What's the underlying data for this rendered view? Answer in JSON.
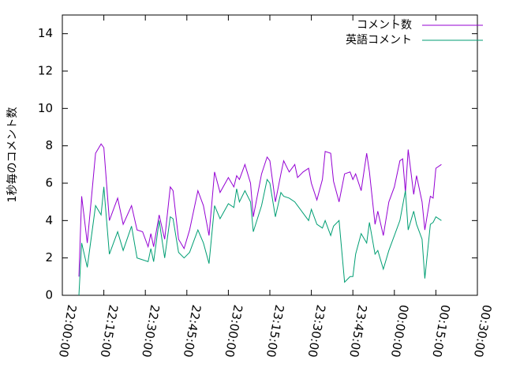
{
  "chart_data": {
    "type": "line",
    "ylabel": "1秒毎のコメント数",
    "x": [
      "22:06:00",
      "22:07:00",
      "22:09:00",
      "22:12:00",
      "22:14:00",
      "22:15:00",
      "22:17:00",
      "22:20:00",
      "22:22:00",
      "22:25:00",
      "22:27:00",
      "22:29:00",
      "22:31:00",
      "22:32:00",
      "22:33:00",
      "22:35:00",
      "22:37:00",
      "22:39:00",
      "22:40:00",
      "22:42:00",
      "22:44:00",
      "22:46:00",
      "22:49:00",
      "22:51:00",
      "22:53:00",
      "22:55:00",
      "22:57:00",
      "23:00:00",
      "23:02:00",
      "23:03:00",
      "23:04:00",
      "23:06:00",
      "23:08:00",
      "23:09:00",
      "23:12:00",
      "23:14:00",
      "23:15:00",
      "23:17:00",
      "23:19:00",
      "23:20:00",
      "23:22:00",
      "23:24:00",
      "23:25:00",
      "23:27:00",
      "23:29:00",
      "23:30:00",
      "23:32:00",
      "23:34:00",
      "23:35:00",
      "23:37:00",
      "23:38:00",
      "23:40:00",
      "23:42:00",
      "23:44:00",
      "23:45:00",
      "23:46:00",
      "23:48:00",
      "23:50:00",
      "23:51:00",
      "23:53:00",
      "23:54:00",
      "23:56:00",
      "23:58:00",
      "00:00:00",
      "00:02:00",
      "00:03:00",
      "00:04:00",
      "00:05:00",
      "00:07:00",
      "00:08:00",
      "00:10:00",
      "00:11:00",
      "00:13:00",
      "00:14:00",
      "00:15:00",
      "00:17:00"
    ],
    "series": [
      {
        "name": "コメント数",
        "color": "#9400d3",
        "values": [
          1.0,
          5.3,
          2.8,
          7.6,
          8.1,
          7.9,
          4.0,
          5.2,
          3.8,
          4.8,
          3.5,
          3.4,
          2.6,
          3.3,
          2.6,
          4.3,
          3.0,
          5.8,
          5.6,
          3.0,
          2.5,
          3.5,
          5.6,
          4.8,
          3.2,
          6.6,
          5.5,
          6.3,
          5.8,
          6.4,
          6.2,
          7.0,
          6.0,
          4.2,
          6.5,
          7.4,
          7.2,
          5.0,
          6.5,
          7.2,
          6.6,
          7.0,
          6.3,
          6.6,
          6.8,
          6.0,
          5.1,
          6.2,
          7.7,
          7.6,
          6.1,
          5.0,
          6.5,
          6.6,
          6.2,
          6.5,
          5.6,
          7.6,
          6.6,
          3.8,
          4.5,
          3.2,
          5.0,
          5.8,
          7.2,
          7.3,
          5.5,
          7.8,
          5.4,
          6.4,
          5.0,
          3.5,
          5.3,
          5.2,
          6.8,
          7.0
        ]
      },
      {
        "name": "英語コメント",
        "color": "#009e73",
        "values": [
          0.0,
          2.8,
          1.5,
          4.8,
          4.3,
          5.8,
          2.2,
          3.4,
          2.4,
          3.7,
          2.0,
          1.9,
          1.8,
          2.5,
          1.8,
          4.0,
          2.0,
          4.2,
          4.1,
          2.3,
          2.0,
          2.3,
          3.5,
          2.8,
          1.7,
          4.8,
          4.1,
          4.9,
          4.7,
          5.7,
          5.0,
          5.6,
          5.0,
          3.4,
          4.8,
          6.2,
          6.0,
          4.2,
          5.5,
          5.3,
          5.2,
          5.0,
          4.8,
          4.4,
          4.0,
          4.6,
          3.8,
          3.6,
          4.0,
          3.2,
          3.7,
          4.0,
          0.7,
          1.0,
          1.0,
          2.2,
          3.3,
          2.8,
          3.9,
          2.2,
          2.4,
          1.4,
          2.4,
          3.2,
          4.0,
          4.8,
          5.6,
          3.5,
          4.5,
          3.8,
          3.0,
          0.9,
          3.8,
          3.9,
          4.2,
          4.0
        ]
      }
    ],
    "xlim": [
      "22:00:00",
      "00:30:00"
    ],
    "xticks": [
      "22:00:00",
      "22:15:00",
      "22:30:00",
      "22:45:00",
      "23:00:00",
      "23:15:00",
      "23:30:00",
      "23:45:00",
      "00:00:00",
      "00:15:00",
      "00:30:00"
    ],
    "ylim": [
      0,
      15
    ],
    "yticks": [
      0,
      2,
      4,
      6,
      8,
      10,
      12,
      14
    ],
    "grid": false,
    "legend": "top-right"
  }
}
